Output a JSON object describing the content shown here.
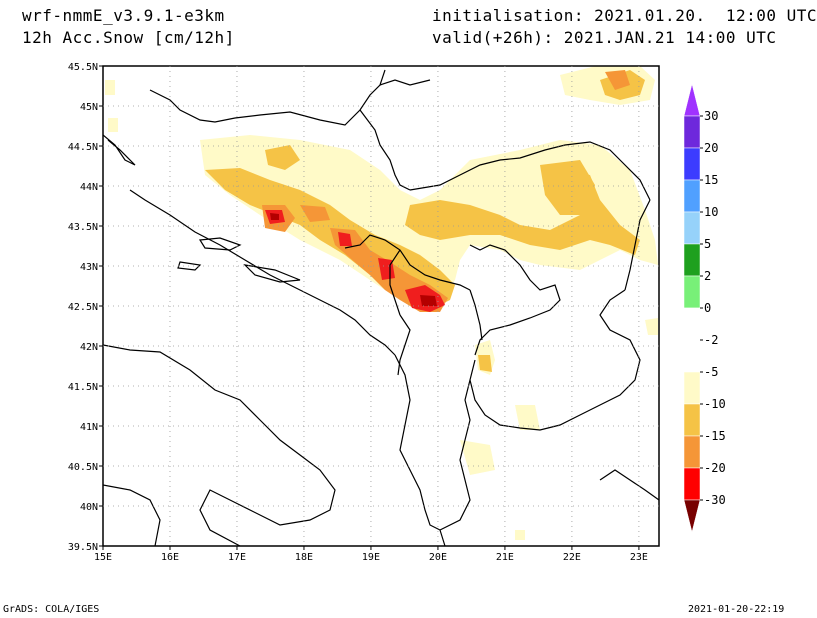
{
  "header": {
    "model": "wrf-nmmE_v3.9.1-e3km",
    "variable": "12h Acc.Snow [cm/12h]",
    "initialisation": "initialisation: 2021.01.20.  12:00 UTC",
    "valid": "valid(+26h): 2021.JAN.21 14:00 UTC"
  },
  "footer": {
    "credit": "GrADS: COLA/IGES",
    "timestamp": "2021-01-20-22:19"
  },
  "map": {
    "lon_range": [
      15,
      23.3
    ],
    "lat_range": [
      39.5,
      45.5
    ],
    "lon_ticks": [
      "15E",
      "16E",
      "17E",
      "18E",
      "19E",
      "20E",
      "21E",
      "22E",
      "23E"
    ],
    "lat_ticks": [
      "39.5N",
      "40N",
      "40.5N",
      "41N",
      "41.5N",
      "42N",
      "42.5N",
      "43N",
      "43.5N",
      "44N",
      "44.5N",
      "45N",
      "45.5N"
    ],
    "grid": "dotted"
  },
  "colorbar": {
    "labels": [
      "30",
      "20",
      "15",
      "10",
      "5",
      "2",
      "0",
      "-2",
      "-5",
      "-10",
      "-15",
      "-20",
      "-30"
    ],
    "colors": [
      "#6e28dc",
      "#3c3cff",
      "#50a0ff",
      "#96d2fa",
      "#1ea01e",
      "#78f078",
      "#ffffff",
      "#ffffff",
      "#fffac8",
      "#f5c346",
      "#f59637",
      "#ff0000",
      "#b40000"
    ],
    "top_arrow_color": "#a032ff",
    "bottom_arrow_color": "#780000"
  },
  "legend_colors": {
    "light": "#fffac8",
    "yellow": "#f5c346",
    "orange": "#f59637",
    "red": "#f01e1e",
    "dark_red": "#b40000"
  }
}
